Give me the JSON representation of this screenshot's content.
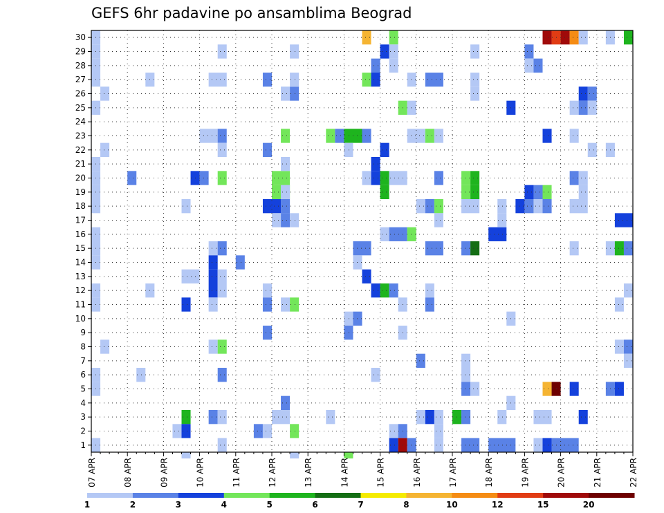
{
  "chart_data": {
    "type": "heatmap",
    "title": "GEFS 6hr padavine po ansamblima Beograd",
    "y_categories": [
      "1",
      "2",
      "3",
      "4",
      "5",
      "6",
      "7",
      "8",
      "9",
      "10",
      "11",
      "12",
      "13",
      "14",
      "15",
      "16",
      "17",
      "18",
      "19",
      "20",
      "21",
      "22",
      "23",
      "24",
      "25",
      "26",
      "27",
      "28",
      "29",
      "30"
    ],
    "x_tick_labels": [
      "07 APR",
      "08 APR",
      "09 APR",
      "10 APR",
      "11 APR",
      "12 APR",
      "13 APR",
      "14 APR",
      "15 APR",
      "16 APR",
      "17 APR",
      "18 APR",
      "19 APR",
      "20 APR",
      "21 APR",
      "22 APR"
    ],
    "x_range_days": [
      0,
      15
    ],
    "steps_per_day": 4,
    "y_range": [
      0.5,
      30.5
    ],
    "grid": true,
    "colorbar": {
      "labels": [
        "1",
        "2",
        "3",
        "4",
        "5",
        "6",
        "7",
        "8",
        "10",
        "12",
        "15",
        "20"
      ],
      "colors": [
        "#b4c8f5",
        "#5a82e6",
        "#1441dc",
        "#73e65a",
        "#1eb41e",
        "#146e14",
        "#f5eb00",
        "#f5b432",
        "#f58c14",
        "#e13c14",
        "#a00a0a",
        "#6e0000"
      ]
    },
    "cells": [
      {
        "m": 30,
        "c": 1,
        "d": 0.0,
        "s": 1
      },
      {
        "m": 29,
        "c": 1,
        "d": 0.0,
        "s": 1
      },
      {
        "m": 28,
        "c": 1,
        "d": 0.0,
        "s": 1
      },
      {
        "m": 27,
        "c": 1,
        "d": 0.0,
        "s": 1
      },
      {
        "m": 26,
        "c": 1,
        "d": 0.25,
        "s": 1
      },
      {
        "m": 25,
        "c": 1,
        "d": 0.0,
        "s": 1
      },
      {
        "m": 22,
        "c": 1,
        "d": 0.25,
        "s": 1
      },
      {
        "m": 21,
        "c": 1,
        "d": 0.0,
        "s": 1
      },
      {
        "m": 20,
        "c": 1,
        "d": 0.0,
        "s": 1
      },
      {
        "m": 19,
        "c": 1,
        "d": 0.0,
        "s": 1
      },
      {
        "m": 18,
        "c": 1,
        "d": 0.0,
        "s": 1
      },
      {
        "m": 16,
        "c": 1,
        "d": 0.0,
        "s": 1
      },
      {
        "m": 15,
        "c": 1,
        "d": 0.0,
        "s": 1
      },
      {
        "m": 14,
        "c": 1,
        "d": 0.0,
        "s": 1
      },
      {
        "m": 12,
        "c": 1,
        "d": 0.0,
        "s": 1
      },
      {
        "m": 11,
        "c": 1,
        "d": 0.0,
        "s": 1
      },
      {
        "m": 8,
        "c": 1,
        "d": 0.25,
        "s": 1
      },
      {
        "m": 6,
        "c": 1,
        "d": 0.0,
        "s": 1
      },
      {
        "m": 5,
        "c": 1,
        "d": 0.0,
        "s": 1
      },
      {
        "m": 1,
        "c": 1,
        "d": 0.0,
        "s": 1
      },
      {
        "m": 20,
        "c": 2,
        "d": 1.0,
        "s": 1
      },
      {
        "m": 27,
        "c": 1,
        "d": 1.5,
        "s": 1
      },
      {
        "m": 12,
        "c": 1,
        "d": 1.5,
        "s": 1
      },
      {
        "m": 6,
        "c": 1,
        "d": 1.25,
        "s": 1
      },
      {
        "m": 20,
        "c": 3,
        "d": 2.75,
        "s": 1
      },
      {
        "m": 20,
        "c": 2,
        "d": 3.0,
        "s": 1
      },
      {
        "m": 18,
        "c": 1,
        "d": 2.5,
        "s": 1
      },
      {
        "m": 11,
        "c": 3,
        "d": 2.5,
        "s": 1
      },
      {
        "m": 3,
        "c": 5,
        "d": 2.5,
        "s": 1
      },
      {
        "m": 2,
        "c": 3,
        "d": 2.5,
        "s": 1
      },
      {
        "m": 2,
        "c": 1,
        "d": 2.25,
        "s": 1
      },
      {
        "m": 0,
        "c": 1,
        "d": 2.5,
        "s": 1
      },
      {
        "m": 13,
        "c": 1,
        "d": 2.5,
        "s": 2
      },
      {
        "m": 23,
        "c": 1,
        "d": 3.0,
        "s": 2
      },
      {
        "m": 27,
        "c": 1,
        "d": 3.25,
        "s": 2
      },
      {
        "m": 23,
        "c": 2,
        "d": 3.5,
        "s": 1
      },
      {
        "m": 22,
        "c": 1,
        "d": 3.5,
        "s": 1
      },
      {
        "m": 29,
        "c": 1,
        "d": 3.5,
        "s": 1
      },
      {
        "m": 20,
        "c": 4,
        "d": 3.5,
        "s": 1
      },
      {
        "m": 15,
        "c": 1,
        "d": 3.25,
        "s": 1
      },
      {
        "m": 15,
        "c": 2,
        "d": 3.5,
        "s": 1
      },
      {
        "m": 14,
        "c": 3,
        "d": 3.25,
        "s": 1
      },
      {
        "m": 13,
        "c": 3,
        "d": 3.25,
        "s": 1
      },
      {
        "m": 13,
        "c": 1,
        "d": 3.5,
        "s": 1
      },
      {
        "m": 12,
        "c": 3,
        "d": 3.25,
        "s": 1
      },
      {
        "m": 12,
        "c": 1,
        "d": 3.5,
        "s": 1
      },
      {
        "m": 11,
        "c": 1,
        "d": 3.25,
        "s": 1
      },
      {
        "m": 8,
        "c": 1,
        "d": 3.25,
        "s": 1
      },
      {
        "m": 8,
        "c": 4,
        "d": 3.5,
        "s": 1
      },
      {
        "m": 6,
        "c": 2,
        "d": 3.5,
        "s": 1
      },
      {
        "m": 3,
        "c": 2,
        "d": 3.25,
        "s": 1
      },
      {
        "m": 3,
        "c": 1,
        "d": 3.5,
        "s": 1
      },
      {
        "m": 1,
        "c": 1,
        "d": 3.5,
        "s": 1
      },
      {
        "m": 14,
        "c": 2,
        "d": 4.0,
        "s": 1
      },
      {
        "m": 27,
        "c": 2,
        "d": 4.75,
        "s": 1
      },
      {
        "m": 22,
        "c": 2,
        "d": 4.75,
        "s": 1
      },
      {
        "m": 18,
        "c": 3,
        "d": 4.75,
        "s": 1
      },
      {
        "m": 12,
        "c": 1,
        "d": 4.75,
        "s": 1
      },
      {
        "m": 11,
        "c": 2,
        "d": 4.75,
        "s": 1
      },
      {
        "m": 9,
        "c": 2,
        "d": 4.75,
        "s": 1
      },
      {
        "m": 2,
        "c": 2,
        "d": 4.5,
        "s": 1
      },
      {
        "m": 2,
        "c": 1,
        "d": 4.75,
        "s": 1
      },
      {
        "m": 18,
        "c": 3,
        "d": 5.0,
        "s": 1
      },
      {
        "m": 20,
        "c": 4,
        "d": 5.0,
        "s": 2
      },
      {
        "m": 19,
        "c": 4,
        "d": 5.0,
        "s": 2
      },
      {
        "m": 19,
        "c": 1,
        "d": 5.25,
        "s": 1
      },
      {
        "m": 18,
        "c": 1,
        "d": 5.25,
        "s": 1
      },
      {
        "m": 18,
        "c": 2,
        "d": 5.25,
        "s": 1
      },
      {
        "m": 17,
        "c": 2,
        "d": 5.25,
        "s": 1
      },
      {
        "m": 17,
        "c": 1,
        "d": 5.0,
        "s": 1
      },
      {
        "m": 21,
        "c": 1,
        "d": 5.25,
        "s": 1
      },
      {
        "m": 23,
        "c": 4,
        "d": 5.25,
        "s": 1
      },
      {
        "m": 26,
        "c": 1,
        "d": 5.25,
        "s": 1
      },
      {
        "m": 26,
        "c": 2,
        "d": 5.5,
        "s": 1
      },
      {
        "m": 27,
        "c": 1,
        "d": 5.5,
        "s": 1
      },
      {
        "m": 29,
        "c": 1,
        "d": 5.5,
        "s": 1
      },
      {
        "m": 17,
        "c": 1,
        "d": 5.5,
        "s": 1
      },
      {
        "m": 4,
        "c": 2,
        "d": 5.25,
        "s": 1
      },
      {
        "m": 3,
        "c": 1,
        "d": 5.0,
        "s": 2
      },
      {
        "m": 2,
        "c": 4,
        "d": 5.5,
        "s": 1
      },
      {
        "m": 11,
        "c": 1,
        "d": 5.25,
        "s": 1
      },
      {
        "m": 11,
        "c": 4,
        "d": 5.5,
        "s": 1
      },
      {
        "m": 0,
        "c": 1,
        "d": 5.5,
        "s": 1
      },
      {
        "m": 23,
        "c": 4,
        "d": 6.5,
        "s": 1
      },
      {
        "m": 23,
        "c": 2,
        "d": 6.75,
        "s": 1
      },
      {
        "m": 23,
        "c": 5,
        "d": 7.0,
        "s": 2
      },
      {
        "m": 23,
        "c": 2,
        "d": 7.5,
        "s": 1
      },
      {
        "m": 22,
        "c": 1,
        "d": 7.0,
        "s": 1
      },
      {
        "m": 3,
        "c": 1,
        "d": 6.5,
        "s": 1
      },
      {
        "m": 10,
        "c": 1,
        "d": 7.0,
        "s": 1
      },
      {
        "m": 10,
        "c": 2,
        "d": 7.25,
        "s": 1
      },
      {
        "m": 9,
        "c": 2,
        "d": 7.0,
        "s": 1
      },
      {
        "m": 15,
        "c": 2,
        "d": 7.25,
        "s": 2
      },
      {
        "m": 14,
        "c": 1,
        "d": 7.25,
        "s": 1
      },
      {
        "m": 13,
        "c": 3,
        "d": 7.5,
        "s": 1
      },
      {
        "m": 0,
        "c": 4,
        "d": 7.0,
        "s": 1
      },
      {
        "m": 30,
        "c": 8,
        "d": 7.5,
        "s": 1
      },
      {
        "m": 27,
        "c": 4,
        "d": 7.5,
        "s": 1
      },
      {
        "m": 27,
        "c": 3,
        "d": 7.75,
        "s": 1
      },
      {
        "m": 28,
        "c": 2,
        "d": 7.75,
        "s": 1
      },
      {
        "m": 29,
        "c": 3,
        "d": 8.0,
        "s": 1
      },
      {
        "m": 21,
        "c": 3,
        "d": 7.75,
        "s": 1
      },
      {
        "m": 20,
        "c": 3,
        "d": 7.75,
        "s": 1
      },
      {
        "m": 20,
        "c": 1,
        "d": 7.5,
        "s": 1
      },
      {
        "m": 22,
        "c": 3,
        "d": 8.0,
        "s": 1
      },
      {
        "m": 20,
        "c": 5,
        "d": 8.0,
        "s": 1
      },
      {
        "m": 19,
        "c": 5,
        "d": 8.0,
        "s": 1
      },
      {
        "m": 16,
        "c": 1,
        "d": 8.0,
        "s": 1
      },
      {
        "m": 16,
        "c": 2,
        "d": 8.25,
        "s": 2
      },
      {
        "m": 16,
        "c": 4,
        "d": 8.75,
        "s": 1
      },
      {
        "m": 12,
        "c": 3,
        "d": 7.75,
        "s": 1
      },
      {
        "m": 12,
        "c": 5,
        "d": 8.0,
        "s": 1
      },
      {
        "m": 12,
        "c": 2,
        "d": 8.25,
        "s": 1
      },
      {
        "m": 6,
        "c": 1,
        "d": 7.75,
        "s": 1
      },
      {
        "m": 30,
        "c": 4,
        "d": 8.25,
        "s": 1
      },
      {
        "m": 29,
        "c": 1,
        "d": 8.25,
        "s": 1
      },
      {
        "m": 28,
        "c": 1,
        "d": 8.25,
        "s": 1
      },
      {
        "m": 25,
        "c": 4,
        "d": 8.5,
        "s": 1
      },
      {
        "m": 25,
        "c": 1,
        "d": 8.75,
        "s": 1
      },
      {
        "m": 20,
        "c": 1,
        "d": 8.25,
        "s": 2
      },
      {
        "m": 11,
        "c": 1,
        "d": 8.5,
        "s": 1
      },
      {
        "m": 9,
        "c": 1,
        "d": 8.5,
        "s": 1
      },
      {
        "m": 2,
        "c": 1,
        "d": 8.25,
        "s": 1
      },
      {
        "m": 2,
        "c": 2,
        "d": 8.5,
        "s": 1
      },
      {
        "m": 1,
        "c": 3,
        "d": 8.25,
        "s": 1
      },
      {
        "m": 1,
        "c": 11,
        "d": 8.5,
        "s": 1
      },
      {
        "m": 1,
        "c": 2,
        "d": 8.75,
        "s": 1
      },
      {
        "m": 27,
        "c": 1,
        "d": 8.75,
        "s": 1
      },
      {
        "m": 27,
        "c": 2,
        "d": 9.25,
        "s": 2
      },
      {
        "m": 23,
        "c": 1,
        "d": 8.75,
        "s": 2
      },
      {
        "m": 23,
        "c": 4,
        "d": 9.25,
        "s": 1
      },
      {
        "m": 23,
        "c": 1,
        "d": 9.5,
        "s": 1
      },
      {
        "m": 18,
        "c": 1,
        "d": 9.0,
        "s": 1
      },
      {
        "m": 18,
        "c": 2,
        "d": 9.25,
        "s": 1
      },
      {
        "m": 18,
        "c": 4,
        "d": 9.5,
        "s": 1
      },
      {
        "m": 17,
        "c": 1,
        "d": 9.5,
        "s": 1
      },
      {
        "m": 20,
        "c": 2,
        "d": 9.5,
        "s": 1
      },
      {
        "m": 15,
        "c": 2,
        "d": 9.25,
        "s": 2
      },
      {
        "m": 12,
        "c": 1,
        "d": 9.25,
        "s": 1
      },
      {
        "m": 11,
        "c": 2,
        "d": 9.25,
        "s": 1
      },
      {
        "m": 7,
        "c": 2,
        "d": 9.0,
        "s": 1
      },
      {
        "m": 3,
        "c": 1,
        "d": 9.0,
        "s": 1
      },
      {
        "m": 3,
        "c": 3,
        "d": 9.25,
        "s": 1
      },
      {
        "m": 3,
        "c": 1,
        "d": 9.5,
        "s": 1
      },
      {
        "m": 2,
        "c": 1,
        "d": 9.5,
        "s": 1
      },
      {
        "m": 1,
        "c": 1,
        "d": 9.5,
        "s": 1
      },
      {
        "m": 20,
        "c": 4,
        "d": 10.25,
        "s": 1
      },
      {
        "m": 20,
        "c": 5,
        "d": 10.5,
        "s": 1
      },
      {
        "m": 19,
        "c": 4,
        "d": 10.25,
        "s": 1
      },
      {
        "m": 19,
        "c": 5,
        "d": 10.5,
        "s": 1
      },
      {
        "m": 15,
        "c": 2,
        "d": 10.25,
        "s": 1
      },
      {
        "m": 15,
        "c": 6,
        "d": 10.5,
        "s": 1
      },
      {
        "m": 7,
        "c": 1,
        "d": 10.25,
        "s": 1
      },
      {
        "m": 6,
        "c": 1,
        "d": 10.25,
        "s": 1
      },
      {
        "m": 5,
        "c": 2,
        "d": 10.25,
        "s": 1
      },
      {
        "m": 5,
        "c": 1,
        "d": 10.5,
        "s": 1
      },
      {
        "m": 3,
        "c": 5,
        "d": 10.0,
        "s": 1
      },
      {
        "m": 3,
        "c": 2,
        "d": 10.25,
        "s": 1
      },
      {
        "m": 29,
        "c": 1,
        "d": 10.5,
        "s": 1
      },
      {
        "m": 27,
        "c": 1,
        "d": 10.5,
        "s": 1
      },
      {
        "m": 26,
        "c": 1,
        "d": 10.5,
        "s": 1
      },
      {
        "m": 18,
        "c": 1,
        "d": 10.25,
        "s": 2
      },
      {
        "m": 1,
        "c": 2,
        "d": 10.25,
        "s": 2
      },
      {
        "m": 16,
        "c": 3,
        "d": 11.0,
        "s": 2
      },
      {
        "m": 18,
        "c": 1,
        "d": 11.25,
        "s": 1
      },
      {
        "m": 17,
        "c": 1,
        "d": 11.25,
        "s": 1
      },
      {
        "m": 25,
        "c": 3,
        "d": 11.5,
        "s": 1
      },
      {
        "m": 18,
        "c": 3,
        "d": 11.75,
        "s": 1
      },
      {
        "m": 18,
        "c": 2,
        "d": 12.0,
        "s": 1
      },
      {
        "m": 19,
        "c": 3,
        "d": 12.0,
        "s": 1
      },
      {
        "m": 29,
        "c": 2,
        "d": 12.0,
        "s": 1
      },
      {
        "m": 28,
        "c": 1,
        "d": 12.0,
        "s": 1
      },
      {
        "m": 28,
        "c": 2,
        "d": 12.25,
        "s": 1
      },
      {
        "m": 10,
        "c": 1,
        "d": 11.5,
        "s": 1
      },
      {
        "m": 4,
        "c": 1,
        "d": 11.5,
        "s": 1
      },
      {
        "m": 3,
        "c": 1,
        "d": 11.25,
        "s": 1
      },
      {
        "m": 1,
        "c": 2,
        "d": 11.0,
        "s": 3
      },
      {
        "m": 30,
        "c": 11,
        "d": 12.5,
        "s": 1
      },
      {
        "m": 30,
        "c": 10,
        "d": 12.75,
        "s": 1
      },
      {
        "m": 30,
        "c": 11,
        "d": 13.0,
        "s": 1
      },
      {
        "m": 30,
        "c": 9,
        "d": 13.25,
        "s": 1
      },
      {
        "m": 30,
        "c": 1,
        "d": 13.5,
        "s": 1
      },
      {
        "m": 30,
        "c": 1,
        "d": 14.25,
        "s": 1
      },
      {
        "m": 30,
        "c": 5,
        "d": 14.75,
        "s": 1
      },
      {
        "m": 18,
        "c": 1,
        "d": 12.25,
        "s": 1
      },
      {
        "m": 18,
        "c": 2,
        "d": 12.5,
        "s": 1
      },
      {
        "m": 18,
        "c": 1,
        "d": 13.25,
        "s": 2
      },
      {
        "m": 20,
        "c": 2,
        "d": 13.25,
        "s": 1
      },
      {
        "m": 20,
        "c": 1,
        "d": 13.5,
        "s": 1
      },
      {
        "m": 19,
        "c": 1,
        "d": 13.5,
        "s": 1
      },
      {
        "m": 19,
        "c": 2,
        "d": 12.25,
        "s": 1
      },
      {
        "m": 19,
        "c": 4,
        "d": 12.5,
        "s": 1
      },
      {
        "m": 23,
        "c": 3,
        "d": 12.5,
        "s": 1
      },
      {
        "m": 23,
        "c": 1,
        "d": 13.25,
        "s": 1
      },
      {
        "m": 26,
        "c": 3,
        "d": 13.5,
        "s": 1
      },
      {
        "m": 26,
        "c": 2,
        "d": 13.75,
        "s": 1
      },
      {
        "m": 25,
        "c": 1,
        "d": 13.25,
        "s": 1
      },
      {
        "m": 25,
        "c": 2,
        "d": 13.5,
        "s": 1
      },
      {
        "m": 25,
        "c": 1,
        "d": 13.75,
        "s": 1
      },
      {
        "m": 22,
        "c": 1,
        "d": 13.75,
        "s": 1
      },
      {
        "m": 22,
        "c": 1,
        "d": 14.25,
        "s": 1
      },
      {
        "m": 17,
        "c": 3,
        "d": 14.5,
        "s": 2
      },
      {
        "m": 15,
        "c": 1,
        "d": 13.25,
        "s": 1
      },
      {
        "m": 15,
        "c": 1,
        "d": 14.25,
        "s": 1
      },
      {
        "m": 15,
        "c": 5,
        "d": 14.5,
        "s": 1
      },
      {
        "m": 15,
        "c": 2,
        "d": 14.75,
        "s": 1
      },
      {
        "m": 11,
        "c": 1,
        "d": 14.5,
        "s": 1
      },
      {
        "m": 12,
        "c": 1,
        "d": 14.75,
        "s": 1
      },
      {
        "m": 8,
        "c": 1,
        "d": 14.5,
        "s": 1
      },
      {
        "m": 8,
        "c": 2,
        "d": 14.75,
        "s": 1
      },
      {
        "m": 7,
        "c": 1,
        "d": 14.75,
        "s": 1
      },
      {
        "m": 5,
        "c": 8,
        "d": 12.5,
        "s": 1
      },
      {
        "m": 5,
        "c": 12,
        "d": 12.75,
        "s": 1
      },
      {
        "m": 5,
        "c": 3,
        "d": 13.25,
        "s": 1
      },
      {
        "m": 5,
        "c": 2,
        "d": 14.25,
        "s": 1
      },
      {
        "m": 5,
        "c": 3,
        "d": 14.5,
        "s": 1
      },
      {
        "m": 3,
        "c": 1,
        "d": 12.25,
        "s": 2
      },
      {
        "m": 3,
        "c": 3,
        "d": 13.5,
        "s": 1
      },
      {
        "m": 1,
        "c": 1,
        "d": 12.25,
        "s": 1
      },
      {
        "m": 1,
        "c": 3,
        "d": 12.5,
        "s": 1
      },
      {
        "m": 1,
        "c": 2,
        "d": 12.75,
        "s": 3
      }
    ]
  }
}
